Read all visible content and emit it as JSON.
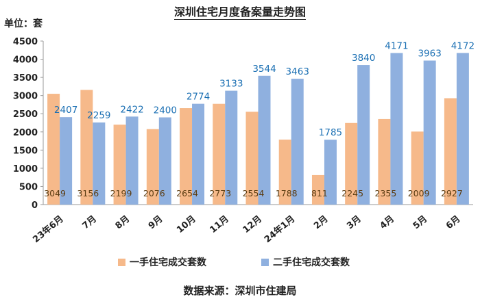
{
  "chart_data": {
    "type": "bar",
    "title": "深圳住宅月度备案量走势图",
    "unit_label": "单位：套",
    "source": "数据来源：深圳市住建局",
    "categories": [
      "23年6月",
      "7月",
      "8月",
      "9月",
      "10月",
      "11月",
      "12月",
      "24年1月",
      "2月",
      "3月",
      "4月",
      "5月",
      "6月"
    ],
    "series": [
      {
        "name": "一手住宅成交套数",
        "color": "#f6b98a",
        "values": [
          3049,
          3156,
          2199,
          2076,
          2654,
          2773,
          2554,
          1788,
          811,
          2245,
          2355,
          2009,
          2927
        ]
      },
      {
        "name": "二手住宅成交套数",
        "color": "#8fb0df",
        "values": [
          2407,
          2259,
          2422,
          2400,
          2774,
          3133,
          3544,
          3463,
          1785,
          3840,
          4171,
          3963,
          4172
        ]
      }
    ],
    "ylim": [
      0,
      4500
    ],
    "yticks": [
      0,
      500,
      1000,
      1500,
      2000,
      2500,
      3000,
      3500,
      4000,
      4500
    ],
    "grid": false,
    "legend": "bottom"
  }
}
